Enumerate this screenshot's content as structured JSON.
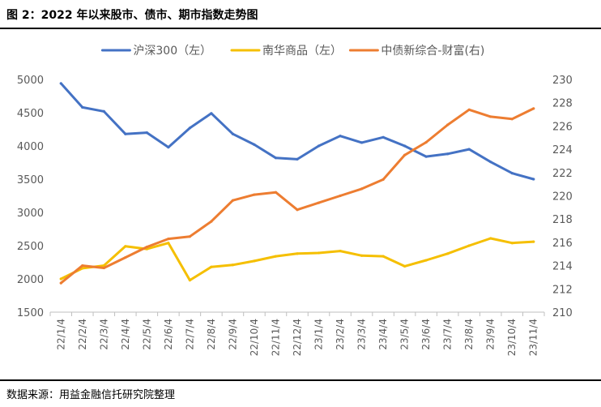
{
  "figure": {
    "title": "图 2：2022 年以来股市、债市、期市指数走势图",
    "source": "数据来源：用益金融信托研究院整理"
  },
  "chart_data": {
    "type": "line",
    "title": "",
    "xlabel": "",
    "ylabel_left": "",
    "ylabel_right": "",
    "ylim_left": [
      1500,
      5000
    ],
    "ylim_right": [
      210,
      230
    ],
    "yticks_left": [
      "1500",
      "2000",
      "2500",
      "3000",
      "3500",
      "4000",
      "4500",
      "5000"
    ],
    "yticks_right": [
      "210",
      "212",
      "214",
      "216",
      "218",
      "220",
      "222",
      "224",
      "226",
      "228",
      "230"
    ],
    "grid": false,
    "legend_position": "top",
    "categories": [
      "22/1/4",
      "22/2/4",
      "22/3/4",
      "22/4/4",
      "22/5/4",
      "22/6/4",
      "22/7/4",
      "22/8/4",
      "22/9/4",
      "22/10/4",
      "22/11/4",
      "22/12/4",
      "23/1/4",
      "23/2/4",
      "23/3/4",
      "23/4/4",
      "23/5/4",
      "23/6/4",
      "23/7/4",
      "23/8/4",
      "23/9/4",
      "23/10/4",
      "23/11/4"
    ],
    "series": [
      {
        "name": "沪深300（左）",
        "axis": "left",
        "color": "#4472C4",
        "values": [
          4940,
          4580,
          4520,
          4180,
          4200,
          3980,
          4270,
          4490,
          4180,
          4020,
          3820,
          3800,
          4000,
          4150,
          4050,
          4130,
          4000,
          3840,
          3880,
          3950,
          3760,
          3590,
          3500
        ]
      },
      {
        "name": "南华商品（左）",
        "axis": "left",
        "color": "#F5BF00",
        "values": [
          2000,
          2160,
          2200,
          2490,
          2450,
          2540,
          1980,
          2180,
          2210,
          2270,
          2340,
          2380,
          2390,
          2420,
          2350,
          2340,
          2190,
          2280,
          2380,
          2500,
          2610,
          2540,
          2560
        ]
      },
      {
        "name": "中债新综合-财富(右)",
        "axis": "right",
        "color": "#ED7D31",
        "values": [
          212.5,
          214.0,
          213.8,
          214.7,
          215.6,
          216.3,
          216.5,
          217.8,
          219.6,
          220.1,
          220.3,
          218.8,
          219.4,
          220.0,
          220.6,
          221.4,
          223.5,
          224.6,
          226.1,
          227.4,
          226.8,
          226.6,
          227.5
        ]
      }
    ]
  }
}
